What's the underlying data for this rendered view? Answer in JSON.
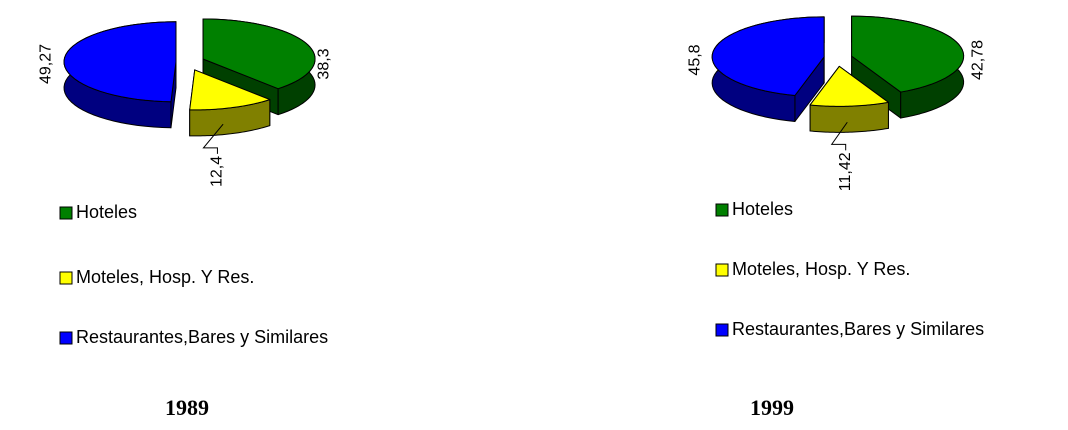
{
  "chart_data": [
    {
      "type": "pie",
      "title": "1989",
      "categories": [
        "Hoteles",
        "Moteles, Hosp. Y Res.",
        "Restaurantes,Bares y Similares"
      ],
      "values": [
        38.3,
        12.4,
        49.27
      ],
      "value_labels": [
        "38,3",
        "12,4",
        "49,27"
      ],
      "colors": [
        "#008000",
        "#ffff00",
        "#0000ff"
      ]
    },
    {
      "type": "pie",
      "title": "1999",
      "categories": [
        "Hoteles",
        "Moteles, Hosp. Y Res.",
        "Restaurantes,Bares y Similares"
      ],
      "values": [
        42.78,
        11.42,
        45.8
      ],
      "value_labels": [
        "42,78",
        "11,42",
        "45,8"
      ],
      "colors": [
        "#008000",
        "#ffff00",
        "#0000ff"
      ]
    }
  ]
}
